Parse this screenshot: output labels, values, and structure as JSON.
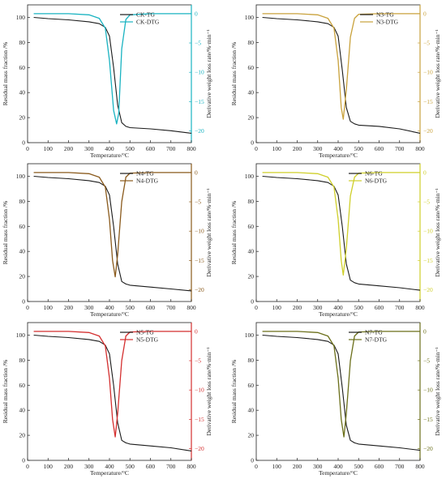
{
  "figure": {
    "xlabel": "Temperature/°C",
    "ylabel_left": "Residual mass fraction /%",
    "ylabel_right": "Derivative weight loss rate/%·min⁻¹",
    "xlim": [
      0,
      800
    ],
    "ylim_left": [
      0,
      110
    ],
    "ylim_right": [
      -22,
      1.5
    ],
    "xticks": [
      0,
      100,
      200,
      300,
      400,
      500,
      600,
      700,
      800
    ],
    "yticks_left": [
      0,
      20,
      40,
      60,
      80,
      100
    ],
    "yticks_right": [
      0,
      -5,
      -10,
      -15,
      -20
    ]
  },
  "chart_data": [
    {
      "type": "line",
      "xlabel": "Temperature/°C",
      "ylabel": "Residual mass fraction /%",
      "ylabel_right": "Derivative weight loss rate/%·min⁻¹",
      "legend_position": "top-center",
      "grid": false,
      "series": [
        {
          "name": "CK-TG",
          "axis": "left",
          "color": "#1a1a1a",
          "x": [
            30,
            100,
            200,
            300,
            350,
            380,
            400,
            420,
            440,
            460,
            480,
            500,
            600,
            700,
            800
          ],
          "y": [
            100,
            99,
            98,
            96.5,
            95,
            92,
            85,
            60,
            30,
            16,
            13,
            12,
            11,
            9.5,
            7.5
          ]
        },
        {
          "name": "CK-DTG",
          "axis": "right",
          "color": "#19b3c1",
          "x": [
            30,
            100,
            200,
            300,
            350,
            380,
            400,
            420,
            435,
            445,
            460,
            480,
            500,
            600,
            800
          ],
          "y": [
            0,
            0,
            0,
            -0.2,
            -0.8,
            -2.5,
            -8,
            -16.5,
            -18.8,
            -17,
            -6,
            -1,
            -0.2,
            0,
            0
          ]
        }
      ]
    },
    {
      "type": "line",
      "xlabel": "Temperature/°C",
      "ylabel": "Residual mass fraction /%",
      "ylabel_right": "Derivative weight loss rate/%·min⁻¹",
      "legend_position": "top-right",
      "grid": false,
      "series": [
        {
          "name": "N3-TG",
          "axis": "left",
          "color": "#1a1a1a",
          "x": [
            30,
            100,
            200,
            300,
            350,
            380,
            400,
            420,
            440,
            460,
            480,
            500,
            600,
            700,
            800
          ],
          "y": [
            100,
            99,
            98,
            96.5,
            95,
            92,
            85,
            58,
            28,
            17,
            15,
            14,
            13,
            11,
            7.5
          ]
        },
        {
          "name": "N3-DTG",
          "axis": "right",
          "color": "#c9a23c",
          "x": [
            30,
            100,
            200,
            300,
            350,
            380,
            400,
            415,
            425,
            440,
            460,
            480,
            500,
            600,
            800
          ],
          "y": [
            0,
            0,
            0,
            -0.2,
            -0.8,
            -2.5,
            -8,
            -16,
            -18,
            -13,
            -4,
            -0.8,
            -0.1,
            0,
            0
          ]
        }
      ]
    },
    {
      "type": "line",
      "xlabel": "Temperature/°C",
      "ylabel": "Residual mass fraction /%",
      "ylabel_right": "Derivative weight loss rate/%·min⁻¹",
      "legend_position": "top-center",
      "grid": false,
      "series": [
        {
          "name": "N4-TG",
          "axis": "left",
          "color": "#1a1a1a",
          "x": [
            30,
            100,
            200,
            300,
            350,
            380,
            400,
            420,
            440,
            460,
            480,
            500,
            600,
            700,
            800
          ],
          "y": [
            100,
            99,
            98,
            96.5,
            95,
            92,
            85,
            60,
            30,
            16,
            14,
            13,
            11.5,
            10,
            8.5
          ]
        },
        {
          "name": "N4-DTG",
          "axis": "right",
          "color": "#8a5a1c",
          "x": [
            30,
            100,
            200,
            300,
            350,
            380,
            400,
            415,
            428,
            440,
            460,
            480,
            500,
            600,
            800
          ],
          "y": [
            0,
            0,
            0,
            -0.2,
            -0.8,
            -2.5,
            -8,
            -15,
            -17.8,
            -14,
            -5,
            -0.8,
            -0.1,
            0,
            0
          ]
        }
      ]
    },
    {
      "type": "line",
      "xlabel": "Temperature/°C",
      "ylabel": "Residual mass fraction /%",
      "ylabel_right": "Derivative weight loss rate/%·min⁻¹",
      "legend_position": "top-center",
      "grid": false,
      "series": [
        {
          "name": "N6-TG",
          "axis": "left",
          "color": "#1a1a1a",
          "x": [
            30,
            100,
            200,
            300,
            350,
            380,
            400,
            420,
            440,
            460,
            480,
            500,
            600,
            700,
            800
          ],
          "y": [
            100,
            99,
            98,
            96.5,
            95,
            92,
            85,
            60,
            30,
            17,
            15,
            14,
            12.5,
            11,
            9
          ]
        },
        {
          "name": "N6-DTG",
          "axis": "right",
          "color": "#cfcf2a",
          "x": [
            30,
            100,
            200,
            300,
            350,
            380,
            400,
            415,
            425,
            440,
            460,
            480,
            500,
            600,
            800
          ],
          "y": [
            0,
            0,
            0,
            -0.2,
            -0.8,
            -2.5,
            -8,
            -15,
            -17.5,
            -13,
            -4,
            -0.8,
            -0.1,
            0,
            0
          ]
        }
      ]
    },
    {
      "type": "line",
      "xlabel": "Temperature/°C",
      "ylabel": "Residual mass fraction /%",
      "ylabel_right": "Derivative weight loss rate/%·min⁻¹",
      "legend_position": "top-center",
      "grid": false,
      "series": [
        {
          "name": "N5-TG",
          "axis": "left",
          "color": "#1a1a1a",
          "x": [
            30,
            100,
            200,
            300,
            350,
            380,
            400,
            420,
            440,
            460,
            480,
            500,
            600,
            700,
            800
          ],
          "y": [
            100,
            99,
            98,
            96.5,
            95,
            92,
            85,
            60,
            30,
            16,
            14,
            13,
            11.5,
            10,
            7.5
          ]
        },
        {
          "name": "N5-DTG",
          "axis": "right",
          "color": "#d42f2f",
          "x": [
            30,
            100,
            200,
            300,
            350,
            380,
            400,
            415,
            428,
            440,
            460,
            480,
            500,
            600,
            800
          ],
          "y": [
            0,
            0,
            0,
            -0.2,
            -0.8,
            -2.5,
            -8,
            -15,
            -18,
            -14,
            -5,
            -0.8,
            -0.1,
            0,
            0
          ]
        }
      ]
    },
    {
      "type": "line",
      "xlabel": "Temperature/°C",
      "ylabel": "Residual mass fraction /%",
      "ylabel_right": "Derivative weight loss rate/%·min⁻¹",
      "legend_position": "top-center",
      "grid": false,
      "series": [
        {
          "name": "N7-TG",
          "axis": "left",
          "color": "#1a1a1a",
          "x": [
            30,
            100,
            200,
            300,
            350,
            380,
            400,
            420,
            440,
            460,
            480,
            500,
            600,
            700,
            800
          ],
          "y": [
            100,
            99,
            98,
            96.5,
            95,
            92,
            85,
            58,
            28,
            16,
            14,
            13,
            11.5,
            10,
            8
          ]
        },
        {
          "name": "N7-DTG",
          "axis": "right",
          "color": "#6b6f1a",
          "x": [
            30,
            100,
            200,
            300,
            350,
            380,
            400,
            415,
            428,
            440,
            460,
            480,
            500,
            600,
            800
          ],
          "y": [
            0,
            0,
            0,
            -0.2,
            -0.8,
            -2.5,
            -8,
            -15,
            -18,
            -14,
            -5,
            -0.8,
            -0.1,
            0,
            0
          ]
        }
      ]
    }
  ]
}
